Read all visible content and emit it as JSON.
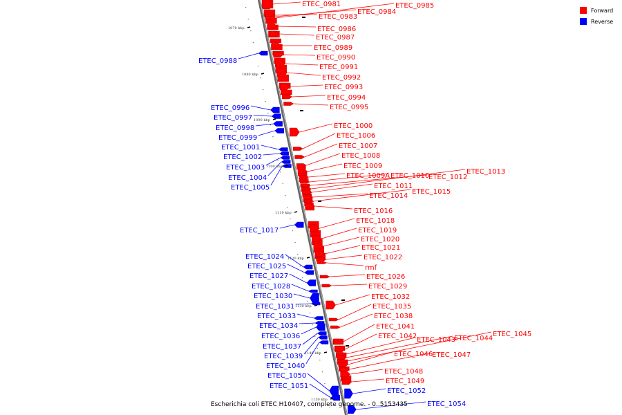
{
  "caption": "Escherichia coli ETEC H10407, complete genome. - 0..5153435",
  "legend": [
    {
      "label": "Forward",
      "color": "#ff0000"
    },
    {
      "label": "Reverse",
      "color": "#0000ff"
    }
  ],
  "colors": {
    "forward": "#ff0000",
    "reverse": "#0000ff",
    "backbone": "#888888"
  },
  "kbp_ticks": [
    "1070 kbp",
    "1080 kbp",
    "1090 kbp",
    "1100 kbp",
    "1110 kbp",
    "1120 kbp",
    "1130 kbp",
    "1140 kbp",
    "1150 kbp"
  ],
  "genes": [
    {
      "name": "ETEC_0981",
      "strand": "forward"
    },
    {
      "name": "ETEC_0983",
      "strand": "forward"
    },
    {
      "name": "ETEC_0984",
      "strand": "forward"
    },
    {
      "name": "ETEC_0985",
      "strand": "forward"
    },
    {
      "name": "ETEC_0986",
      "strand": "forward"
    },
    {
      "name": "ETEC_0987",
      "strand": "forward"
    },
    {
      "name": "ETEC_0989",
      "strand": "forward"
    },
    {
      "name": "ETEC_0990",
      "strand": "forward"
    },
    {
      "name": "ETEC_0991",
      "strand": "forward"
    },
    {
      "name": "ETEC_0992",
      "strand": "forward"
    },
    {
      "name": "ETEC_0993",
      "strand": "forward"
    },
    {
      "name": "ETEC_0994",
      "strand": "forward"
    },
    {
      "name": "ETEC_0995",
      "strand": "forward"
    },
    {
      "name": "ETEC_1000",
      "strand": "forward"
    },
    {
      "name": "ETEC_1006",
      "strand": "forward"
    },
    {
      "name": "ETEC_1007",
      "strand": "forward"
    },
    {
      "name": "ETEC_1008",
      "strand": "forward"
    },
    {
      "name": "ETEC_1009",
      "strand": "forward"
    },
    {
      "name": "ETEC_1009A",
      "strand": "forward"
    },
    {
      "name": "ETEC_1010",
      "strand": "forward"
    },
    {
      "name": "ETEC_1012",
      "strand": "forward"
    },
    {
      "name": "ETEC_1013",
      "strand": "forward"
    },
    {
      "name": "ETEC_1011",
      "strand": "forward"
    },
    {
      "name": "ETEC_1014",
      "strand": "forward"
    },
    {
      "name": "ETEC_1015",
      "strand": "forward"
    },
    {
      "name": "ETEC_1016",
      "strand": "forward"
    },
    {
      "name": "ETEC_1018",
      "strand": "forward"
    },
    {
      "name": "ETEC_1019",
      "strand": "forward"
    },
    {
      "name": "ETEC_1020",
      "strand": "forward"
    },
    {
      "name": "ETEC_1021",
      "strand": "forward"
    },
    {
      "name": "ETEC_1022",
      "strand": "forward"
    },
    {
      "name": "rmf",
      "strand": "forward"
    },
    {
      "name": "ETEC_1026",
      "strand": "forward"
    },
    {
      "name": "ETEC_1029",
      "strand": "forward"
    },
    {
      "name": "ETEC_1032",
      "strand": "forward"
    },
    {
      "name": "ETEC_1035",
      "strand": "forward"
    },
    {
      "name": "ETEC_1038",
      "strand": "forward"
    },
    {
      "name": "ETEC_1041",
      "strand": "forward"
    },
    {
      "name": "ETEC_1042",
      "strand": "forward"
    },
    {
      "name": "ETEC_1043",
      "strand": "forward"
    },
    {
      "name": "ETEC_1044",
      "strand": "forward"
    },
    {
      "name": "ETEC_1045",
      "strand": "forward"
    },
    {
      "name": "ETEC_1046",
      "strand": "forward"
    },
    {
      "name": "ETEC_1047",
      "strand": "forward"
    },
    {
      "name": "ETEC_1048",
      "strand": "forward"
    },
    {
      "name": "ETEC_1049",
      "strand": "forward"
    },
    {
      "name": "ETEC_1052",
      "strand": "reverse"
    },
    {
      "name": "ETEC_1054",
      "strand": "reverse"
    },
    {
      "name": "ETEC_0988",
      "strand": "reverse"
    },
    {
      "name": "ETEC_0996",
      "strand": "reverse"
    },
    {
      "name": "ETEC_0997",
      "strand": "reverse"
    },
    {
      "name": "ETEC_0998",
      "strand": "reverse"
    },
    {
      "name": "ETEC_0999",
      "strand": "reverse"
    },
    {
      "name": "ETEC_1001",
      "strand": "reverse"
    },
    {
      "name": "ETEC_1002",
      "strand": "reverse"
    },
    {
      "name": "ETEC_1003",
      "strand": "reverse"
    },
    {
      "name": "ETEC_1004",
      "strand": "reverse"
    },
    {
      "name": "ETEC_1005",
      "strand": "reverse"
    },
    {
      "name": "ETEC_1017",
      "strand": "reverse"
    },
    {
      "name": "ETEC_1024",
      "strand": "reverse"
    },
    {
      "name": "ETEC_1025",
      "strand": "reverse"
    },
    {
      "name": "ETEC_1027",
      "strand": "reverse"
    },
    {
      "name": "ETEC_1028",
      "strand": "reverse"
    },
    {
      "name": "ETEC_1030",
      "strand": "reverse"
    },
    {
      "name": "ETEC_1031",
      "strand": "reverse"
    },
    {
      "name": "ETEC_1033",
      "strand": "reverse"
    },
    {
      "name": "ETEC_1034",
      "strand": "reverse"
    },
    {
      "name": "ETEC_1036",
      "strand": "reverse"
    },
    {
      "name": "ETEC_1037",
      "strand": "reverse"
    },
    {
      "name": "ETEC_1039",
      "strand": "reverse"
    },
    {
      "name": "ETEC_1040",
      "strand": "reverse"
    },
    {
      "name": "ETEC_1050",
      "strand": "reverse"
    },
    {
      "name": "ETEC_1051",
      "strand": "reverse"
    }
  ]
}
